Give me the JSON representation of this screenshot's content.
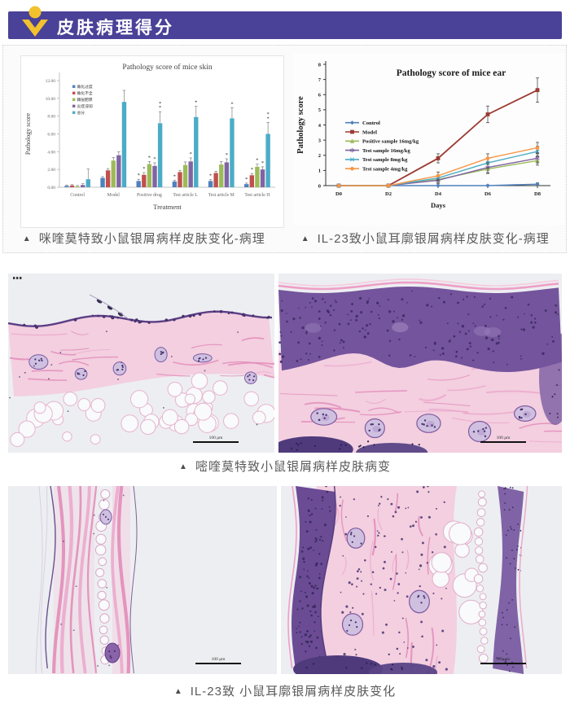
{
  "header": {
    "title": "皮肤病理得分",
    "bar_color": "#4a4198",
    "icon": "person-chevron-icon",
    "icon_color": "#f2c12e"
  },
  "captions": {
    "marker": "▲",
    "chart_left": "咪喹莫特致小鼠银屑病样皮肤变化-病理",
    "chart_right": "IL-23致小鼠耳廓银屑病样皮肤变化-病理",
    "histology_skin": "嘧喹莫特致小鼠银屑病样皮肤病变",
    "histology_ear": "IL-23致 小鼠耳廓银屑病样皮肤变化"
  },
  "chart_data": [
    {
      "type": "bar",
      "title": "Pathology score of mice skin",
      "xlabel": "Treatment",
      "ylabel": "Pathology score",
      "ylim": [
        0,
        12
      ],
      "ytick_step": 2,
      "ytick_labels": [
        "0.00",
        "2.00",
        "4.00",
        "6.00",
        "8.00",
        "10.00",
        "12.00"
      ],
      "legend_position": "inside-top-left",
      "grid": false,
      "categories": [
        "Control",
        "Model",
        "Positive drug",
        "Test article L",
        "Test article M",
        "Test article H"
      ],
      "series": [
        {
          "name": "角化过度",
          "color": "#4F81BD",
          "values": [
            0.15,
            1.05,
            0.7,
            0.65,
            0.7,
            0.35
          ],
          "errors": [
            0.1,
            0.15,
            0.2,
            0.15,
            0.15,
            0.12
          ],
          "stars": [
            "",
            "",
            "*",
            "*",
            "*",
            "*"
          ]
        },
        {
          "name": "角化不全",
          "color": "#C0504D",
          "values": [
            0.2,
            1.9,
            1.4,
            1.7,
            1.6,
            1.35
          ],
          "errors": [
            0.1,
            0.2,
            0.25,
            0.2,
            0.2,
            0.2
          ],
          "stars": [
            "",
            "",
            "*",
            "",
            "",
            "*"
          ]
        },
        {
          "name": "棘层肥厚",
          "color": "#9BBB59",
          "values": [
            0.1,
            3.0,
            2.6,
            2.5,
            2.55,
            2.3
          ],
          "errors": [
            0.1,
            0.35,
            0.3,
            0.35,
            0.35,
            0.3
          ],
          "stars": [
            "",
            "",
            "*",
            "",
            "",
            "*"
          ]
        },
        {
          "name": "炎症浸润",
          "color": "#8064A2",
          "values": [
            0.25,
            3.6,
            2.4,
            2.9,
            2.8,
            2.0
          ],
          "errors": [
            0.15,
            0.4,
            0.35,
            0.4,
            0.4,
            0.3
          ],
          "stars": [
            "",
            "",
            "*",
            "*",
            "*",
            "*"
          ]
        },
        {
          "name": "总分",
          "color": "#4BACC6",
          "values": [
            0.9,
            9.6,
            7.2,
            7.9,
            7.75,
            6.0
          ],
          "errors": [
            1.15,
            1.3,
            1.3,
            1.2,
            1.2,
            1.3
          ],
          "stars": [
            "",
            "",
            "**",
            "*",
            "*",
            "**"
          ]
        }
      ]
    },
    {
      "type": "line",
      "title": "Pathology score of mice ear",
      "xlabel": "Days",
      "ylabel": "Pathology score",
      "ylim": [
        0,
        8
      ],
      "ytick_step": 1,
      "legend_position": "inside-left",
      "grid": false,
      "x": [
        "D0",
        "D2",
        "D4",
        "D6",
        "D8"
      ],
      "series": [
        {
          "name": "Control",
          "color": "#4F81BD",
          "marker": "diamond",
          "values": [
            0,
            0,
            0,
            0,
            0.1
          ],
          "errors": [
            0,
            0,
            0.05,
            0.05,
            0.08
          ]
        },
        {
          "name": "Model",
          "color": "#9C3A32",
          "marker": "square",
          "values": [
            0,
            0,
            1.8,
            4.7,
            6.3
          ],
          "errors": [
            0,
            0,
            0.3,
            0.55,
            0.8
          ]
        },
        {
          "name": "Positive sample 16mg/kg",
          "color": "#9BBB59",
          "marker": "triangle",
          "values": [
            0,
            0,
            0.4,
            1.1,
            1.65
          ],
          "errors": [
            0,
            0,
            0.25,
            0.3,
            0.3
          ]
        },
        {
          "name": "Test sample 16mg/kg",
          "color": "#8064A2",
          "marker": "star",
          "values": [
            0,
            0,
            0.35,
            1.2,
            1.8
          ],
          "errors": [
            0,
            0,
            0.15,
            0.35,
            0.3
          ]
        },
        {
          "name": "Test sample 8mg/kg",
          "color": "#4BACC6",
          "marker": "x",
          "values": [
            0,
            0,
            0.5,
            1.5,
            2.25
          ],
          "errors": [
            0,
            0,
            0.2,
            0.35,
            0.35
          ]
        },
        {
          "name": "Test sample 4mg/kg",
          "color": "#F79646",
          "marker": "circle",
          "values": [
            0,
            0,
            0.65,
            1.8,
            2.5
          ],
          "errors": [
            0,
            0,
            0.25,
            0.3,
            0.35
          ]
        }
      ]
    }
  ],
  "histology": {
    "scale_bar_label": "100 μm",
    "images": [
      {
        "kind": "skin-control"
      },
      {
        "kind": "skin-model"
      },
      {
        "kind": "ear-control"
      },
      {
        "kind": "ear-model"
      }
    ]
  }
}
